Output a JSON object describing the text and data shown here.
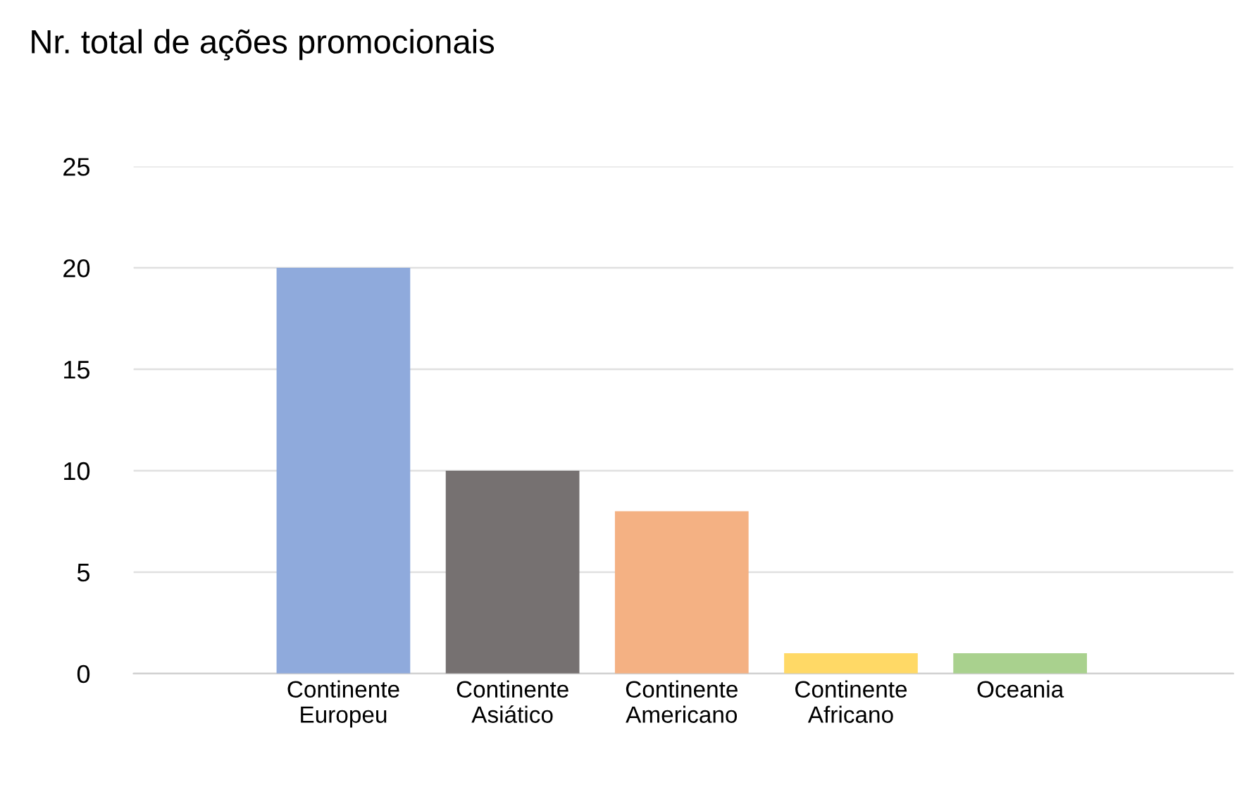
{
  "chart_data": {
    "type": "bar",
    "title": "Nr. total de ações promocionais",
    "categories": [
      "Continente\nEuropeu",
      "Continente\nAsiático",
      "Continente\nAmericano",
      "Continente\nAfricano",
      "Oceania"
    ],
    "values": [
      20,
      10,
      8,
      1,
      1
    ],
    "colors": [
      "#8faadc",
      "#767171",
      "#f4b183",
      "#ffd966",
      "#a9d18e"
    ],
    "ylim": [
      0,
      25
    ],
    "yticks": [
      0,
      5,
      10,
      15,
      20,
      25
    ],
    "grid": "y",
    "legend": false
  }
}
